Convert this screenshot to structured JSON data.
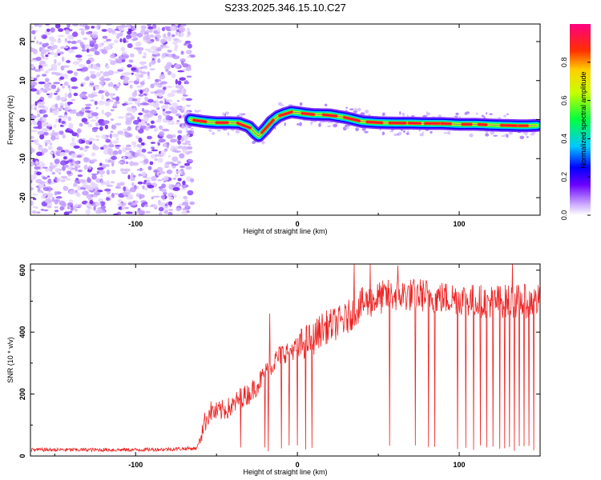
{
  "title": "S233.2025.346.15.10.C27",
  "chart_data": [
    {
      "type": "heatmap",
      "title": "S233.2025.346.15.10.C27",
      "xlabel": "Height of straight line (km)",
      "ylabel": "Frequency (Hz)",
      "xlim": [
        -165,
        150
      ],
      "ylim": [
        -24.5,
        24.5
      ],
      "xticks": [
        -100,
        0,
        100
      ],
      "yticks": [
        -20,
        -10,
        0,
        10,
        20
      ],
      "noise_region_x": [
        -165,
        -67
      ],
      "colorbar": {
        "label": "Normalized spectral amplitude",
        "range": [
          0,
          1
        ],
        "ticks": [
          0.0,
          0.2,
          0.4,
          0.6,
          0.8
        ]
      },
      "ridge": {
        "x": [
          -66,
          -58,
          -50,
          -42,
          -36,
          -30,
          -26,
          -24,
          -20,
          -16,
          -12,
          -8,
          -4,
          0,
          5,
          10,
          20,
          30,
          40,
          50,
          60,
          70,
          80,
          90,
          100,
          110,
          120,
          130,
          140,
          148
        ],
        "y": [
          0,
          -0.5,
          -0.8,
          -0.8,
          -0.9,
          -1.8,
          -3.5,
          -4.2,
          -2.5,
          -0.5,
          0.8,
          1.5,
          2.0,
          1.8,
          1.5,
          1.3,
          1.2,
          0.5,
          -0.5,
          -0.8,
          -0.9,
          -0.9,
          -1.0,
          -1.0,
          -1.2,
          -1.2,
          -1.4,
          -1.5,
          -1.6,
          -1.5
        ]
      }
    },
    {
      "type": "line",
      "xlabel": "Height of straight line (km)",
      "ylabel": "SNR (10 * v/v)",
      "xlim": [
        -165,
        150
      ],
      "ylim": [
        0,
        620
      ],
      "xticks": [
        -100,
        0,
        100
      ],
      "yticks": [
        0,
        200,
        400,
        600
      ],
      "color": "#ee2222",
      "series": [
        {
          "name": "SNR",
          "x": [
            -165,
            -140,
            -120,
            -100,
            -80,
            -62,
            -58,
            -54,
            -50,
            -45,
            -40,
            -35,
            -30,
            -25,
            -20,
            -15,
            -10,
            -5,
            0,
            5,
            10,
            15,
            20,
            25,
            30,
            35,
            40,
            45,
            50,
            55,
            60,
            70,
            80,
            90,
            100,
            110,
            120,
            130,
            140,
            150
          ],
          "values": [
            20,
            20,
            20,
            20,
            22,
            25,
            100,
            145,
            140,
            150,
            160,
            190,
            200,
            230,
            265,
            300,
            330,
            340,
            350,
            370,
            380,
            410,
            420,
            430,
            440,
            470,
            490,
            500,
            510,
            515,
            520,
            520,
            520,
            510,
            510,
            500,
            500,
            500,
            500,
            500
          ]
        }
      ],
      "spikes_up": [
        [
          -17,
          460
        ],
        [
          35,
          620
        ],
        [
          45,
          620
        ],
        [
          62,
          615
        ],
        [
          73,
          600
        ],
        [
          133,
          620
        ]
      ],
      "dropouts": [
        -35,
        -20,
        -18,
        -10,
        -5,
        0,
        5,
        9,
        57,
        73,
        81,
        85,
        99,
        104,
        109,
        113,
        117,
        121,
        125,
        128,
        131,
        134,
        137,
        140,
        143,
        146
      ]
    }
  ]
}
